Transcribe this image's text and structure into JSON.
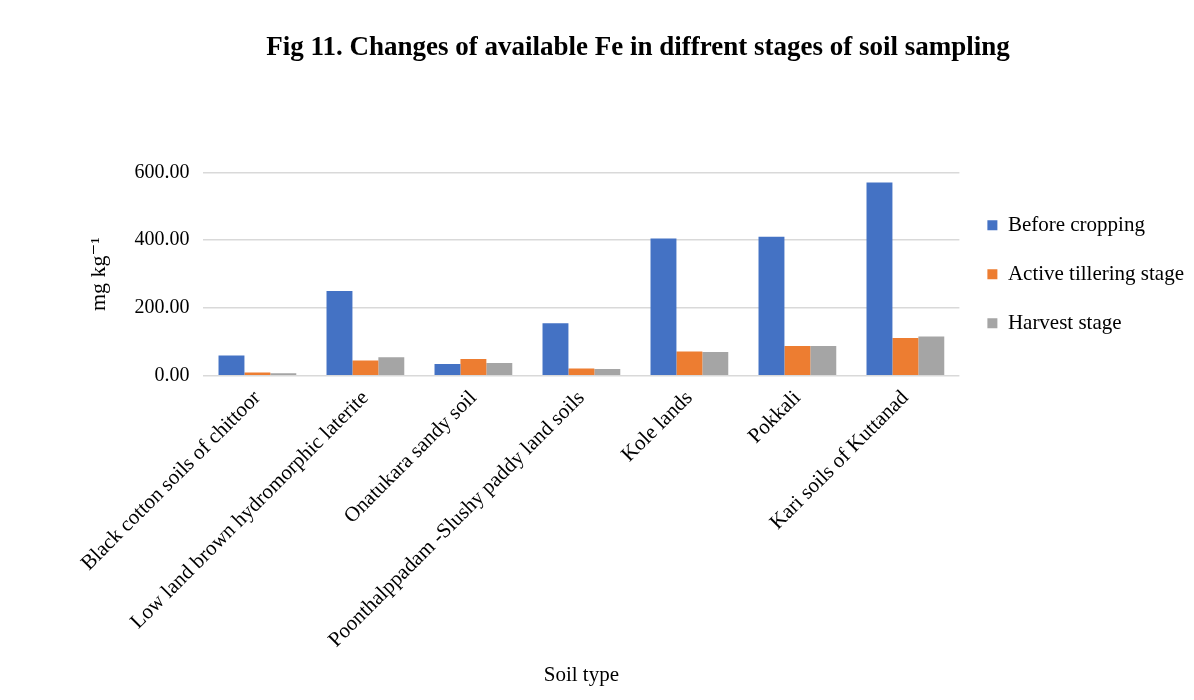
{
  "chart_data": {
    "type": "bar",
    "title": "Fig 11. Changes of available Fe in diffrent stages of soil sampling",
    "xlabel": "Soil type",
    "ylabel": "mg kg⁻¹",
    "categories": [
      "Black cotton soils of chittoor",
      "Low land brown hydromorphic laterite",
      "Onatukara sandy soil",
      "Poonthalppadam -Slushy paddy land soils",
      "Kole lands",
      "Pokkali",
      "Kari soils of Kuttanad"
    ],
    "series": [
      {
        "name": "Before cropping",
        "color": "#4472c4",
        "values": [
          60,
          250,
          35,
          155,
          405,
          410,
          570
        ]
      },
      {
        "name": "Active tillering stage",
        "color": "#ed7d31",
        "values": [
          10,
          45,
          50,
          22,
          72,
          88,
          112
        ]
      },
      {
        "name": "Harvest stage",
        "color": "#a5a5a5",
        "values": [
          8,
          55,
          38,
          20,
          70,
          88,
          116
        ]
      }
    ],
    "ylim": [
      0,
      600
    ],
    "yticks": [
      {
        "value": 0,
        "label": "0.00"
      },
      {
        "value": 200,
        "label": "200.00"
      },
      {
        "value": 400,
        "label": "400.00"
      },
      {
        "value": 600,
        "label": "600.00"
      }
    ],
    "grid": "y",
    "legend": "right"
  }
}
